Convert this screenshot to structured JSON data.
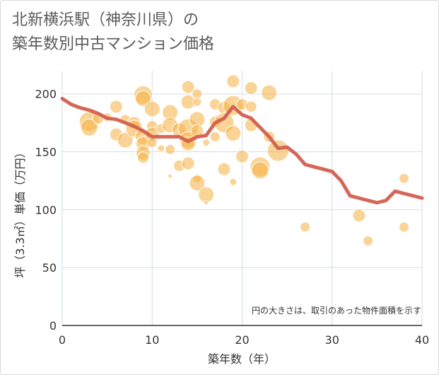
{
  "chart_data": {
    "type": "scatter",
    "title": "北新横浜駅（神奈川県）の\n築年数別中古マンション価格",
    "xlabel": "築年数（年）",
    "ylabel": "坪（3.3㎡）単価（万円）",
    "xlim": [
      0,
      40
    ],
    "ylim": [
      0,
      220
    ],
    "x_ticks": [
      0,
      10,
      20,
      30,
      40
    ],
    "y_ticks": [
      0,
      50,
      100,
      150,
      200
    ],
    "grid": true,
    "annotation": "円の大きさは、取引のあった物件面積を示す",
    "colors": {
      "bubble": "#f5b041",
      "line": "#d35f4f",
      "grid": "#d3dde6"
    },
    "series": [
      {
        "kind": "bubble",
        "points": [
          {
            "x": 3,
            "y": 176,
            "s": 14
          },
          {
            "x": 3,
            "y": 171,
            "s": 12
          },
          {
            "x": 4,
            "y": 179,
            "s": 8
          },
          {
            "x": 5,
            "y": 180,
            "s": 6
          },
          {
            "x": 6,
            "y": 189,
            "s": 9
          },
          {
            "x": 6,
            "y": 165,
            "s": 9
          },
          {
            "x": 7,
            "y": 178,
            "s": 7
          },
          {
            "x": 7,
            "y": 160,
            "s": 11
          },
          {
            "x": 8,
            "y": 175,
            "s": 9
          },
          {
            "x": 8,
            "y": 170,
            "s": 12
          },
          {
            "x": 9,
            "y": 199,
            "s": 13
          },
          {
            "x": 9,
            "y": 196,
            "s": 11
          },
          {
            "x": 9,
            "y": 163,
            "s": 11
          },
          {
            "x": 9,
            "y": 157,
            "s": 10
          },
          {
            "x": 9,
            "y": 149,
            "s": 10
          },
          {
            "x": 9,
            "y": 145,
            "s": 8
          },
          {
            "x": 10,
            "y": 187,
            "s": 11
          },
          {
            "x": 10,
            "y": 172,
            "s": 8
          },
          {
            "x": 10,
            "y": 165,
            "s": 10
          },
          {
            "x": 10,
            "y": 158,
            "s": 7
          },
          {
            "x": 11,
            "y": 153,
            "s": 5
          },
          {
            "x": 11,
            "y": 170,
            "s": 7
          },
          {
            "x": 12,
            "y": 184,
            "s": 11
          },
          {
            "x": 12,
            "y": 173,
            "s": 11
          },
          {
            "x": 12,
            "y": 152,
            "s": 7
          },
          {
            "x": 12,
            "y": 129,
            "s": 3
          },
          {
            "x": 13,
            "y": 169,
            "s": 10
          },
          {
            "x": 13,
            "y": 138,
            "s": 8
          },
          {
            "x": 14,
            "y": 206,
            "s": 9
          },
          {
            "x": 14,
            "y": 193,
            "s": 10
          },
          {
            "x": 14,
            "y": 170,
            "s": 14
          },
          {
            "x": 14,
            "y": 160,
            "s": 12
          },
          {
            "x": 14,
            "y": 157,
            "s": 10
          },
          {
            "x": 14,
            "y": 140,
            "s": 9
          },
          {
            "x": 15,
            "y": 200,
            "s": 7
          },
          {
            "x": 15,
            "y": 193,
            "s": 6
          },
          {
            "x": 15,
            "y": 178,
            "s": 11
          },
          {
            "x": 15,
            "y": 168,
            "s": 9
          },
          {
            "x": 15,
            "y": 127,
            "s": 6
          },
          {
            "x": 15,
            "y": 123,
            "s": 11
          },
          {
            "x": 16,
            "y": 158,
            "s": 5
          },
          {
            "x": 16,
            "y": 113,
            "s": 11
          },
          {
            "x": 16,
            "y": 106,
            "s": 3
          },
          {
            "x": 17,
            "y": 191,
            "s": 8
          },
          {
            "x": 17,
            "y": 176,
            "s": 8
          },
          {
            "x": 17,
            "y": 163,
            "s": 7
          },
          {
            "x": 18,
            "y": 188,
            "s": 9
          },
          {
            "x": 18,
            "y": 175,
            "s": 14
          },
          {
            "x": 18,
            "y": 135,
            "s": 9
          },
          {
            "x": 19,
            "y": 211,
            "s": 9
          },
          {
            "x": 19,
            "y": 190,
            "s": 14
          },
          {
            "x": 19,
            "y": 166,
            "s": 11
          },
          {
            "x": 19,
            "y": 124,
            "s": 5
          },
          {
            "x": 20,
            "y": 191,
            "s": 8
          },
          {
            "x": 20,
            "y": 146,
            "s": 9
          },
          {
            "x": 21,
            "y": 205,
            "s": 9
          },
          {
            "x": 21,
            "y": 189,
            "s": 8
          },
          {
            "x": 21,
            "y": 173,
            "s": 9
          },
          {
            "x": 22,
            "y": 137,
            "s": 14
          },
          {
            "x": 22,
            "y": 134,
            "s": 12
          },
          {
            "x": 23,
            "y": 201,
            "s": 11
          },
          {
            "x": 23,
            "y": 163,
            "s": 8
          },
          {
            "x": 24,
            "y": 151,
            "s": 15
          },
          {
            "x": 27,
            "y": 85,
            "s": 7
          },
          {
            "x": 33,
            "y": 95,
            "s": 9
          },
          {
            "x": 34,
            "y": 73,
            "s": 7
          },
          {
            "x": 38,
            "y": 127,
            "s": 7
          },
          {
            "x": 38,
            "y": 85,
            "s": 7
          }
        ]
      },
      {
        "kind": "line",
        "points": [
          {
            "x": 0,
            "y": 196
          },
          {
            "x": 1,
            "y": 191
          },
          {
            "x": 2,
            "y": 188
          },
          {
            "x": 3,
            "y": 186
          },
          {
            "x": 4,
            "y": 183
          },
          {
            "x": 5,
            "y": 179
          },
          {
            "x": 6,
            "y": 178
          },
          {
            "x": 7,
            "y": 175
          },
          {
            "x": 8,
            "y": 172
          },
          {
            "x": 9,
            "y": 168
          },
          {
            "x": 10,
            "y": 163
          },
          {
            "x": 11,
            "y": 163
          },
          {
            "x": 12,
            "y": 163
          },
          {
            "x": 13,
            "y": 163
          },
          {
            "x": 14,
            "y": 159
          },
          {
            "x": 15,
            "y": 163
          },
          {
            "x": 16,
            "y": 164
          },
          {
            "x": 17,
            "y": 175
          },
          {
            "x": 18,
            "y": 179
          },
          {
            "x": 19,
            "y": 189
          },
          {
            "x": 20,
            "y": 182
          },
          {
            "x": 21,
            "y": 179
          },
          {
            "x": 22,
            "y": 171
          },
          {
            "x": 23,
            "y": 163
          },
          {
            "x": 24,
            "y": 153
          },
          {
            "x": 25,
            "y": 154
          },
          {
            "x": 26,
            "y": 148
          },
          {
            "x": 27,
            "y": 139
          },
          {
            "x": 28,
            "y": 137
          },
          {
            "x": 29,
            "y": 135
          },
          {
            "x": 30,
            "y": 133
          },
          {
            "x": 31,
            "y": 125
          },
          {
            "x": 32,
            "y": 112
          },
          {
            "x": 33,
            "y": 110
          },
          {
            "x": 34,
            "y": 108
          },
          {
            "x": 35,
            "y": 106
          },
          {
            "x": 36,
            "y": 108
          },
          {
            "x": 37,
            "y": 116
          },
          {
            "x": 38,
            "y": 114
          },
          {
            "x": 39,
            "y": 112
          },
          {
            "x": 40,
            "y": 110
          }
        ]
      }
    ]
  }
}
